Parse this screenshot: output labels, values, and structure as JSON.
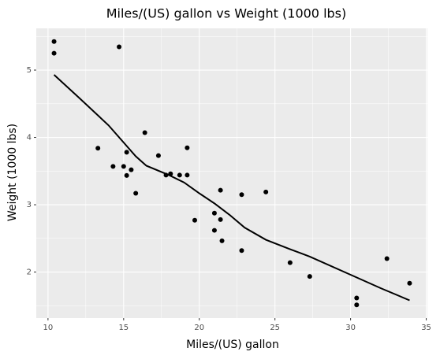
{
  "chart_data": {
    "type": "scatter",
    "title": "Miles/(US) gallon vs Weight (1000 lbs)",
    "x_label": "Miles/(US) gallon",
    "y_label": "Weight (1000 lbs)",
    "x": [
      21,
      21,
      22.8,
      21.4,
      18.7,
      18.1,
      14.3,
      24.4,
      22.8,
      19.2,
      17.8,
      16.4,
      17.3,
      15.2,
      10.4,
      10.4,
      14.7,
      32.4,
      30.4,
      33.9,
      21.5,
      15.5,
      15.2,
      13.3,
      19.2,
      27.3,
      26,
      30.4,
      15.8,
      19.7,
      15,
      21.4
    ],
    "values": [
      2.62,
      2.875,
      2.32,
      3.215,
      3.44,
      3.46,
      3.57,
      3.19,
      3.15,
      3.44,
      3.44,
      4.07,
      3.73,
      3.78,
      5.25,
      5.424,
      5.345,
      2.2,
      1.615,
      1.835,
      2.465,
      3.52,
      3.435,
      3.84,
      3.845,
      1.935,
      2.14,
      1.513,
      3.17,
      2.77,
      3.57,
      2.78
    ],
    "color": "#000000",
    "trend": {
      "x": [
        10.4,
        12,
        14,
        15.8,
        16.5,
        18,
        19,
        20,
        21,
        22,
        23,
        24.4,
        26,
        27.3,
        30,
        32,
        33.9
      ],
      "values": [
        4.93,
        4.6,
        4.18,
        3.72,
        3.58,
        3.44,
        3.33,
        3.17,
        3.02,
        2.85,
        2.66,
        2.48,
        2.34,
        2.23,
        1.96,
        1.76,
        1.58
      ],
      "color": "#000000"
    },
    "xlim": [
      9.225,
      35.075
    ],
    "ylim": [
      1.317,
      5.62
    ],
    "xticks": [
      10,
      15,
      20,
      25,
      30,
      35
    ],
    "yticks": [
      2,
      3,
      4,
      5
    ],
    "minor_xticks": [
      12.5,
      17.5,
      22.5,
      27.5,
      32.5
    ],
    "minor_yticks": [
      1.5,
      2.5,
      3.5,
      4.5,
      5.5
    ],
    "grid": true
  }
}
